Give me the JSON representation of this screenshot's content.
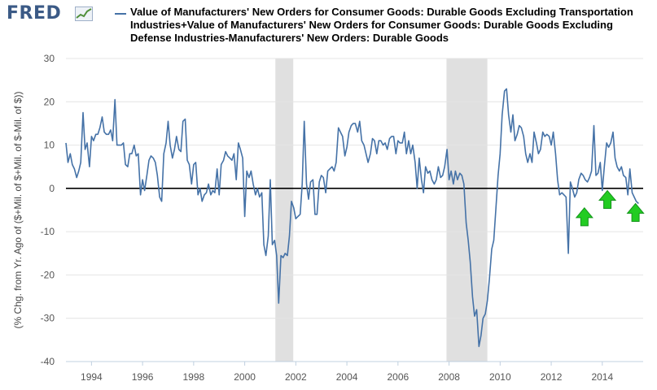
{
  "brand": {
    "name": "FRED",
    "icon": "fred-chart-icon"
  },
  "colors": {
    "series": "#4572a7",
    "recession": "#e0e0e0",
    "arrow": "#22cc22",
    "zero_line": "#000000"
  },
  "chart_data": {
    "type": "line",
    "title": "Value of Manufacturers' New Orders for Consumer Goods: Durable Goods Excluding Transportation Industries+Value of Manufacturers' New Orders for Consumer Goods: Durable Goods Excluding Defense Industries-Manufacturers' New Orders: Durable Goods",
    "legend": [
      "Value of Manufacturers' New Orders for Consumer Goods: Durable Goods Excluding Transportation Industries+Value of Manufacturers' New Orders for Consumer Goods: Durable Goods Excluding Defense Industries-Manufacturers' New Orders: Durable Goods"
    ],
    "ylabel": "(% Chg. from Yr. Ago of ($+Mil. of $+Mil. of $-Mil. of $))",
    "xlabel": "",
    "xlim": [
      1993.0,
      2015.6
    ],
    "ylim": [
      -40,
      30
    ],
    "x_ticks": [
      1994,
      1996,
      1998,
      2000,
      2002,
      2004,
      2006,
      2008,
      2010,
      2012,
      2014
    ],
    "x_tick_labels": [
      "1994",
      "1996",
      "1998",
      "2000",
      "2002",
      "2004",
      "2006",
      "2008",
      "2010",
      "2012",
      "2014"
    ],
    "y_ticks": [
      30,
      20,
      10,
      0,
      -10,
      -20,
      -30,
      -40
    ],
    "y_tick_labels": [
      "30",
      "20",
      "10",
      "0",
      "-10",
      "-20",
      "-30",
      "-40"
    ],
    "recessions": [
      [
        2001.2,
        2001.9
      ],
      [
        2007.9,
        2009.5
      ]
    ],
    "annotations": [
      {
        "type": "up-arrow",
        "x": 2013.3,
        "y": -4.5
      },
      {
        "type": "up-arrow",
        "x": 2014.2,
        "y": -0.5
      },
      {
        "type": "up-arrow",
        "x": 2015.3,
        "y": -3.5
      }
    ],
    "series": [
      {
        "name": "Value of Manufacturers' New Orders for Consumer Goods: Durable Goods Excluding Transportation Industries+Value of Manufacturers' New Orders for Consumer Goods: Durable Goods Excluding Defense Industries-Manufacturers' New Orders: Durable Goods",
        "points": [
          [
            1993.0,
            10.5
          ],
          [
            1993.08,
            6
          ],
          [
            1993.17,
            8
          ],
          [
            1993.25,
            5.5
          ],
          [
            1993.33,
            4.5
          ],
          [
            1993.42,
            2.5
          ],
          [
            1993.5,
            4
          ],
          [
            1993.58,
            6
          ],
          [
            1993.67,
            17.5
          ],
          [
            1993.75,
            9
          ],
          [
            1993.83,
            10.5
          ],
          [
            1993.92,
            5
          ],
          [
            1994.0,
            12
          ],
          [
            1994.08,
            11
          ],
          [
            1994.17,
            12.5
          ],
          [
            1994.25,
            12.5
          ],
          [
            1994.33,
            14
          ],
          [
            1994.42,
            16.5
          ],
          [
            1994.5,
            13
          ],
          [
            1994.58,
            12.5
          ],
          [
            1994.67,
            12.5
          ],
          [
            1994.75,
            13.5
          ],
          [
            1994.83,
            11
          ],
          [
            1994.92,
            20.5
          ],
          [
            1995.0,
            10
          ],
          [
            1995.08,
            10
          ],
          [
            1995.17,
            10
          ],
          [
            1995.25,
            10.5
          ],
          [
            1995.33,
            5.5
          ],
          [
            1995.42,
            5
          ],
          [
            1995.5,
            8
          ],
          [
            1995.58,
            8
          ],
          [
            1995.67,
            10
          ],
          [
            1995.75,
            7.5
          ],
          [
            1995.83,
            8
          ],
          [
            1995.92,
            -1.5
          ],
          [
            1996.0,
            2
          ],
          [
            1996.08,
            -0.5
          ],
          [
            1996.17,
            3
          ],
          [
            1996.25,
            6.5
          ],
          [
            1996.33,
            7.5
          ],
          [
            1996.42,
            7
          ],
          [
            1996.5,
            6
          ],
          [
            1996.58,
            3
          ],
          [
            1996.67,
            -2
          ],
          [
            1996.75,
            -3
          ],
          [
            1996.83,
            8
          ],
          [
            1996.92,
            10.5
          ],
          [
            1997.0,
            15.5
          ],
          [
            1997.08,
            10
          ],
          [
            1997.17,
            7
          ],
          [
            1997.25,
            9
          ],
          [
            1997.33,
            12
          ],
          [
            1997.42,
            9
          ],
          [
            1997.5,
            8.5
          ],
          [
            1997.58,
            15.5
          ],
          [
            1997.67,
            16
          ],
          [
            1997.75,
            6.5
          ],
          [
            1997.83,
            5.5
          ],
          [
            1997.92,
            1
          ],
          [
            1998.0,
            5.5
          ],
          [
            1998.08,
            6
          ],
          [
            1998.17,
            -1.5
          ],
          [
            1998.25,
            0
          ],
          [
            1998.33,
            -3
          ],
          [
            1998.42,
            -1.5
          ],
          [
            1998.5,
            -1
          ],
          [
            1998.58,
            1
          ],
          [
            1998.67,
            -1.5
          ],
          [
            1998.75,
            -0.5
          ],
          [
            1998.83,
            -1
          ],
          [
            1998.92,
            4.5
          ],
          [
            1999.0,
            -1.5
          ],
          [
            1999.08,
            5.5
          ],
          [
            1999.17,
            6.5
          ],
          [
            1999.25,
            8.5
          ],
          [
            1999.33,
            7.5
          ],
          [
            1999.42,
            7
          ],
          [
            1999.5,
            6.5
          ],
          [
            1999.58,
            8
          ],
          [
            1999.67,
            2
          ],
          [
            1999.75,
            10.5
          ],
          [
            1999.83,
            9
          ],
          [
            1999.92,
            7
          ],
          [
            2000.0,
            -6.5
          ],
          [
            2000.08,
            4
          ],
          [
            2000.17,
            2.5
          ],
          [
            2000.25,
            4
          ],
          [
            2000.33,
            1
          ],
          [
            2000.42,
            -1.5
          ],
          [
            2000.5,
            0
          ],
          [
            2000.58,
            -2
          ],
          [
            2000.67,
            -1
          ],
          [
            2000.75,
            -13
          ],
          [
            2000.83,
            -15.5
          ],
          [
            2000.92,
            -11
          ],
          [
            2001.0,
            2
          ],
          [
            2001.08,
            -13
          ],
          [
            2001.17,
            -12
          ],
          [
            2001.25,
            -15.5
          ],
          [
            2001.33,
            -26.5
          ],
          [
            2001.42,
            -15.5
          ],
          [
            2001.5,
            -16
          ],
          [
            2001.58,
            -15
          ],
          [
            2001.67,
            -15.5
          ],
          [
            2001.75,
            -11
          ],
          [
            2001.83,
            -3
          ],
          [
            2001.92,
            -4.5
          ],
          [
            2002.0,
            -7
          ],
          [
            2002.08,
            -6.5
          ],
          [
            2002.17,
            -6
          ],
          [
            2002.25,
            1
          ],
          [
            2002.33,
            15.5
          ],
          [
            2002.42,
            1
          ],
          [
            2002.5,
            -2.5
          ],
          [
            2002.58,
            1.5
          ],
          [
            2002.67,
            2
          ],
          [
            2002.75,
            -6
          ],
          [
            2002.83,
            -6
          ],
          [
            2002.92,
            1.5
          ],
          [
            2003.0,
            3
          ],
          [
            2003.08,
            2.5
          ],
          [
            2003.17,
            -1
          ],
          [
            2003.25,
            4
          ],
          [
            2003.33,
            4.5
          ],
          [
            2003.42,
            5
          ],
          [
            2003.5,
            4
          ],
          [
            2003.58,
            6
          ],
          [
            2003.67,
            14
          ],
          [
            2003.75,
            13
          ],
          [
            2003.83,
            12
          ],
          [
            2003.92,
            7.5
          ],
          [
            2004.0,
            9.5
          ],
          [
            2004.08,
            13
          ],
          [
            2004.17,
            14.5
          ],
          [
            2004.25,
            15
          ],
          [
            2004.33,
            15
          ],
          [
            2004.42,
            13
          ],
          [
            2004.5,
            15.5
          ],
          [
            2004.58,
            11
          ],
          [
            2004.67,
            10
          ],
          [
            2004.75,
            8
          ],
          [
            2004.83,
            6
          ],
          [
            2004.92,
            8
          ],
          [
            2005.0,
            11.5
          ],
          [
            2005.08,
            11
          ],
          [
            2005.17,
            8
          ],
          [
            2005.25,
            11
          ],
          [
            2005.33,
            11
          ],
          [
            2005.42,
            10
          ],
          [
            2005.5,
            10.5
          ],
          [
            2005.58,
            9
          ],
          [
            2005.67,
            11.5
          ],
          [
            2005.75,
            12
          ],
          [
            2005.83,
            12
          ],
          [
            2005.92,
            8
          ],
          [
            2006.0,
            11
          ],
          [
            2006.08,
            10.5
          ],
          [
            2006.17,
            10.5
          ],
          [
            2006.25,
            13
          ],
          [
            2006.33,
            8
          ],
          [
            2006.42,
            11
          ],
          [
            2006.5,
            8
          ],
          [
            2006.58,
            10
          ],
          [
            2006.67,
            6
          ],
          [
            2006.75,
            0
          ],
          [
            2006.83,
            7
          ],
          [
            2006.92,
            2
          ],
          [
            2007.0,
            -1
          ],
          [
            2007.08,
            5
          ],
          [
            2007.17,
            3.5
          ],
          [
            2007.25,
            4
          ],
          [
            2007.33,
            2
          ],
          [
            2007.42,
            1
          ],
          [
            2007.5,
            2
          ],
          [
            2007.58,
            5
          ],
          [
            2007.67,
            2.5
          ],
          [
            2007.75,
            3
          ],
          [
            2007.83,
            5
          ],
          [
            2007.92,
            9
          ],
          [
            2008.0,
            2
          ],
          [
            2008.08,
            4
          ],
          [
            2008.17,
            1
          ],
          [
            2008.25,
            4
          ],
          [
            2008.33,
            2
          ],
          [
            2008.42,
            3.5
          ],
          [
            2008.5,
            3
          ],
          [
            2008.58,
            1
          ],
          [
            2008.67,
            -8
          ],
          [
            2008.75,
            -12
          ],
          [
            2008.83,
            -17
          ],
          [
            2008.92,
            -25
          ],
          [
            2009.0,
            -29.5
          ],
          [
            2009.08,
            -28
          ],
          [
            2009.17,
            -36.5
          ],
          [
            2009.25,
            -34
          ],
          [
            2009.33,
            -30
          ],
          [
            2009.42,
            -29
          ],
          [
            2009.5,
            -26
          ],
          [
            2009.58,
            -21
          ],
          [
            2009.67,
            -14
          ],
          [
            2009.75,
            -12
          ],
          [
            2009.83,
            -5
          ],
          [
            2009.92,
            3
          ],
          [
            2010.0,
            8
          ],
          [
            2010.08,
            17
          ],
          [
            2010.17,
            22.5
          ],
          [
            2010.25,
            23
          ],
          [
            2010.33,
            17
          ],
          [
            2010.42,
            13
          ],
          [
            2010.5,
            17
          ],
          [
            2010.58,
            11
          ],
          [
            2010.67,
            12.5
          ],
          [
            2010.75,
            14.5
          ],
          [
            2010.83,
            14
          ],
          [
            2010.92,
            12
          ],
          [
            2011.0,
            8
          ],
          [
            2011.08,
            6
          ],
          [
            2011.17,
            8
          ],
          [
            2011.25,
            6
          ],
          [
            2011.33,
            13
          ],
          [
            2011.42,
            10.5
          ],
          [
            2011.5,
            8
          ],
          [
            2011.58,
            9
          ],
          [
            2011.67,
            13
          ],
          [
            2011.75,
            12
          ],
          [
            2011.83,
            12.5
          ],
          [
            2011.92,
            12
          ],
          [
            2012.0,
            10
          ],
          [
            2012.08,
            13
          ],
          [
            2012.17,
            8
          ],
          [
            2012.25,
            2
          ],
          [
            2012.33,
            -1.5
          ],
          [
            2012.42,
            -1
          ],
          [
            2012.5,
            -1.5
          ],
          [
            2012.58,
            -2
          ],
          [
            2012.67,
            -15
          ],
          [
            2012.75,
            1.5
          ],
          [
            2012.83,
            0
          ],
          [
            2012.92,
            -2
          ],
          [
            2013.0,
            -1
          ],
          [
            2013.08,
            2
          ],
          [
            2013.17,
            3.5
          ],
          [
            2013.25,
            3
          ],
          [
            2013.33,
            2
          ],
          [
            2013.42,
            1.5
          ],
          [
            2013.5,
            2.5
          ],
          [
            2013.58,
            4
          ],
          [
            2013.67,
            14.5
          ],
          [
            2013.75,
            3
          ],
          [
            2013.83,
            3.5
          ],
          [
            2013.92,
            6
          ],
          [
            2014.0,
            -0.5
          ],
          [
            2014.08,
            5
          ],
          [
            2014.17,
            10.5
          ],
          [
            2014.25,
            9.5
          ],
          [
            2014.33,
            10.5
          ],
          [
            2014.42,
            13
          ],
          [
            2014.5,
            7
          ],
          [
            2014.58,
            5
          ],
          [
            2014.67,
            4
          ],
          [
            2014.75,
            5
          ],
          [
            2014.83,
            3
          ],
          [
            2014.92,
            2.5
          ],
          [
            2015.0,
            -1.5
          ],
          [
            2015.08,
            4.5
          ],
          [
            2015.17,
            -1
          ],
          [
            2015.25,
            -2
          ],
          [
            2015.33,
            -3
          ],
          [
            2015.42,
            -3.5
          ]
        ]
      }
    ]
  }
}
